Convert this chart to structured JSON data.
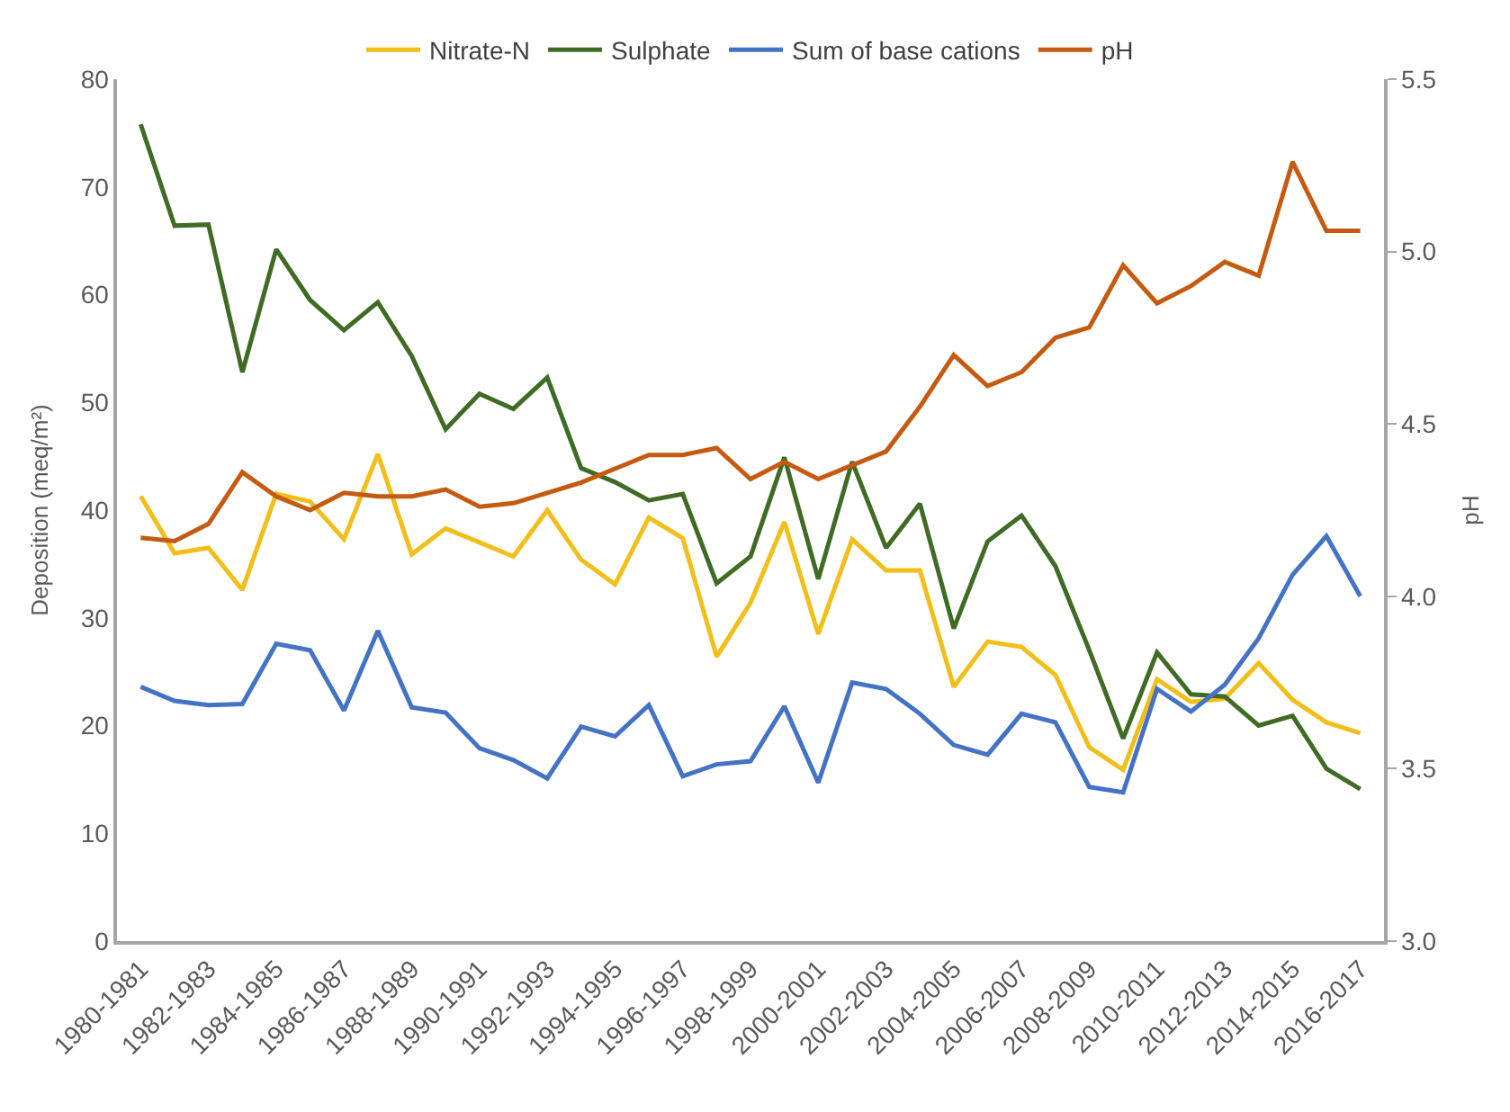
{
  "chart_data": {
    "type": "line",
    "ylabel": "Deposition (meq/m²)",
    "y2label": "pH",
    "categories": [
      "1980-1981",
      null,
      "1982-1983",
      null,
      "1984-1985",
      null,
      "1986-1987",
      null,
      "1988-1989",
      null,
      "1990-1991",
      null,
      "1992-1993",
      null,
      "1994-1995",
      null,
      "1996-1997",
      null,
      "1998-1999",
      null,
      "2000-2001",
      null,
      "2002-2003",
      null,
      "2004-2005",
      null,
      "2006-2007",
      null,
      "2008-2009",
      null,
      "2010-2011",
      null,
      "2012-2013",
      null,
      "2014-2015",
      null,
      "2016-2017"
    ],
    "series": [
      {
        "name": "Nitrate-N",
        "color": "#f2be19",
        "values": [
          41.3,
          36,
          36.5,
          32.6,
          41.5,
          40.8,
          37.3,
          45.2,
          35.9,
          38.3,
          37,
          35.7,
          40,
          35.4,
          33.1,
          39.3,
          37.4,
          26.4,
          31.4,
          38.9,
          28.5,
          37.3,
          34.4,
          34.4,
          23.6,
          27.8,
          27.3,
          24.7,
          18,
          15.9,
          24.3,
          22.2,
          22.5,
          25.8,
          22.4,
          20.3,
          19.3
        ]
      },
      {
        "name": "Sulphate",
        "color": "#3f6b25",
        "values": [
          75.8,
          66.4,
          66.5,
          52.8,
          64.2,
          59.5,
          56.7,
          59.3,
          54.3,
          47.5,
          50.8,
          49.4,
          52.3,
          43.9,
          42.6,
          40.9,
          41.5,
          33.2,
          35.7,
          44.9,
          33.6,
          44.5,
          36.5,
          40.6,
          29,
          37.1,
          39.5,
          34.8,
          27,
          18.8,
          26.8,
          22.9,
          22.7,
          20,
          20.9,
          16,
          14.1
        ]
      },
      {
        "name": "Sum of base cations",
        "color": "#4472c4",
        "values": [
          23.6,
          22.3,
          21.9,
          22,
          27.6,
          27,
          21.4,
          28.8,
          21.7,
          21.2,
          17.9,
          16.8,
          15.1,
          19.9,
          19,
          21.9,
          15.3,
          16.4,
          16.7,
          21.8,
          14.7,
          24,
          23.4,
          21.1,
          18.2,
          17.3,
          21.1,
          20.3,
          14.3,
          13.8,
          23.4,
          21.3,
          23.8,
          28.1,
          34,
          37.6,
          32
        ]
      },
      {
        "name": "pH",
        "color": "#c55a11",
        "axis": "y2",
        "values": [
          4.17,
          4.16,
          4.21,
          4.36,
          4.29,
          4.25,
          4.3,
          4.29,
          4.29,
          4.31,
          4.26,
          4.27,
          4.3,
          4.33,
          4.37,
          4.41,
          4.41,
          4.43,
          4.34,
          4.39,
          4.34,
          4.38,
          4.42,
          4.55,
          4.7,
          4.61,
          4.65,
          4.75,
          4.78,
          4.96,
          4.85,
          4.9,
          4.97,
          4.93,
          5.26,
          5.06,
          5.06
        ]
      }
    ],
    "ylim": [
      0,
      80
    ],
    "yticks": [
      0,
      10,
      20,
      30,
      40,
      50,
      60,
      70,
      80
    ],
    "y2lim": [
      3.0,
      5.5
    ],
    "y2ticks": [
      {
        "value": 3.0,
        "label": "3.0"
      },
      {
        "value": 3.5,
        "label": "3.5"
      },
      {
        "value": 4.0,
        "label": "4.0"
      },
      {
        "value": 4.5,
        "label": "4.5"
      },
      {
        "value": 5.0,
        "label": "5.0"
      },
      {
        "value": 5.5,
        "label": "5.5"
      }
    ],
    "legend": "top",
    "marker": "none",
    "line_style": "solid"
  }
}
